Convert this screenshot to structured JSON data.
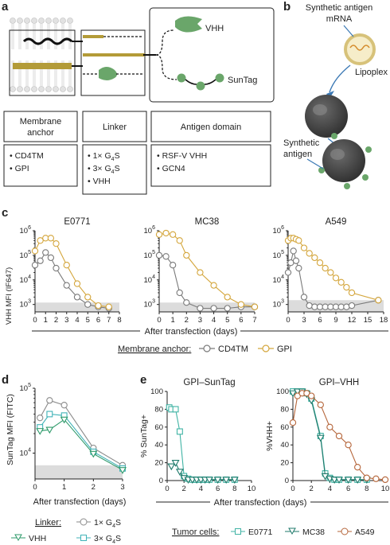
{
  "panels": {
    "a": "a",
    "b": "b",
    "c": "c",
    "d": "d",
    "e": "e"
  },
  "panel_a": {
    "vhh_label": "VHH",
    "suntag_label": "SunTag",
    "headers": [
      "Membrane anchor",
      "Linker",
      "Antigen domain"
    ],
    "anchor_items": [
      "CD4TM",
      "GPI"
    ],
    "linker_items": [
      "1× G4S",
      "3× G4S",
      "VHH"
    ],
    "antigen_items": [
      "RSF-V VHH",
      "GCN4"
    ]
  },
  "panel_b": {
    "mrna_label": "Synthetic antigen mRNA",
    "lipoplex_label": "Lipoplex",
    "antigen_label": "Synthetic antigen"
  },
  "panel_c": {
    "ylabel": "VHH MFI (IF647)",
    "xlabel": "After transfection (days)",
    "legend_title": "Membrane anchor:",
    "legend_items": [
      "CD4TM",
      "GPI"
    ]
  },
  "panel_d": {
    "ylabel": "SunTag MFI (FITC)",
    "xlabel": "After transfection (days)",
    "legend_title": "Linker:",
    "legend_items": [
      "1× G4S",
      "VHH",
      "3× G4S"
    ]
  },
  "panel_e": {
    "xlabel": "After transfection (days)",
    "legend_title": "Tumor cells:",
    "legend_items": [
      "E0771",
      "MC38",
      "A549"
    ]
  },
  "colors": {
    "cd4tm": "#7a7a7a",
    "gpi": "#d4a63c",
    "e0771": "#3fb3a4",
    "mc38": "#1f7a6b",
    "a549": "#b5653a",
    "g4s1": "#8a8a8a",
    "vhh_linker": "#2e9a6a",
    "g4s3": "#41b3b8",
    "shade": "#dcdcdc",
    "antigen_green": "#6aa66a",
    "gold": "#b39b38"
  },
  "chart_data": [
    {
      "type": "line",
      "title": "E0771",
      "xlabel": "After transfection (days)",
      "ylabel": "VHH MFI (IF647)",
      "yscale": "log",
      "xlim": [
        0,
        8
      ],
      "ylim": [
        500,
        1000000
      ],
      "shaded_below": 1200,
      "xticks": [
        0,
        1,
        2,
        3,
        4,
        5,
        6,
        7,
        8
      ],
      "series": [
        {
          "name": "CD4TM",
          "x": [
            0,
            0.5,
            1,
            1.5,
            2,
            3,
            4,
            5,
            6,
            7
          ],
          "y": [
            40000,
            60000,
            130000,
            80000,
            30000,
            6000,
            2000,
            1000,
            800,
            700
          ]
        },
        {
          "name": "GPI",
          "x": [
            0,
            0.5,
            1,
            1.5,
            2,
            3,
            4,
            5,
            6,
            7
          ],
          "y": [
            150000,
            400000,
            500000,
            500000,
            300000,
            40000,
            7000,
            2000,
            900,
            800
          ]
        }
      ]
    },
    {
      "type": "line",
      "title": "MC38",
      "xlabel": "After transfection (days)",
      "ylabel": "VHH MFI (IF647)",
      "yscale": "log",
      "xlim": [
        0,
        7
      ],
      "ylim": [
        500,
        1000000
      ],
      "shaded_below": 1200,
      "xticks": [
        0,
        1,
        2,
        3,
        4,
        5,
        6,
        7
      ],
      "series": [
        {
          "name": "CD4TM",
          "x": [
            0,
            0.5,
            1,
            1.5,
            2,
            3,
            4,
            5,
            6,
            7
          ],
          "y": [
            100000,
            90000,
            40000,
            3000,
            1200,
            700,
            700,
            700,
            800,
            800
          ]
        },
        {
          "name": "GPI",
          "x": [
            0,
            0.5,
            1,
            1.5,
            2,
            3,
            4,
            5,
            6,
            7
          ],
          "y": [
            700000,
            800000,
            700000,
            400000,
            100000,
            20000,
            6000,
            2000,
            1000,
            800
          ]
        }
      ]
    },
    {
      "type": "line",
      "title": "A549",
      "xlabel": "After transfection (days)",
      "ylabel": "VHH MFI (IF647)",
      "yscale": "log",
      "xlim": [
        0,
        18
      ],
      "ylim": [
        500,
        1000000
      ],
      "shaded_below": 1500,
      "xticks": [
        0,
        3,
        6,
        9,
        12,
        15,
        18
      ],
      "series": [
        {
          "name": "CD4TM",
          "x": [
            0,
            0.5,
            1,
            1.5,
            2,
            3,
            4,
            5,
            6,
            7,
            8,
            9,
            10,
            11,
            12,
            17
          ],
          "y": [
            20000,
            50000,
            150000,
            60000,
            30000,
            2000,
            900,
            800,
            800,
            800,
            800,
            800,
            800,
            800,
            900,
            1500
          ]
        },
        {
          "name": "GPI",
          "x": [
            0,
            0.5,
            1,
            1.5,
            2,
            3,
            4,
            5,
            6,
            7,
            8,
            9,
            10,
            11,
            12,
            17
          ],
          "y": [
            400000,
            500000,
            500000,
            450000,
            400000,
            200000,
            120000,
            80000,
            50000,
            30000,
            20000,
            12000,
            8000,
            5000,
            3000,
            1500
          ]
        }
      ]
    },
    {
      "type": "line",
      "title": "",
      "xlabel": "After transfection (days)",
      "ylabel": "SunTag MFI (FITC)",
      "yscale": "log",
      "xlim": [
        0,
        3
      ],
      "ylim": [
        4000,
        100000
      ],
      "shaded_below": 6500,
      "xticks": [
        0,
        1,
        2,
        3
      ],
      "series": [
        {
          "name": "1× G4S",
          "x": [
            0.17,
            0.5,
            1,
            2,
            3
          ],
          "y": [
            35000,
            65000,
            55000,
            12000,
            6500
          ]
        },
        {
          "name": "3× G4S",
          "x": [
            0.17,
            0.5,
            1,
            2,
            3
          ],
          "y": [
            25000,
            40000,
            38000,
            10500,
            5800
          ]
        },
        {
          "name": "VHH",
          "x": [
            0.17,
            0.5,
            1,
            2,
            3
          ],
          "y": [
            22000,
            23000,
            33000,
            9800,
            5500
          ]
        }
      ]
    },
    {
      "type": "line",
      "title": "GPI–SunTag",
      "xlabel": "After transfection (days)",
      "ylabel": "% SunTag+",
      "xlim": [
        0,
        10
      ],
      "ylim": [
        0,
        100
      ],
      "xticks": [
        0,
        2,
        4,
        6,
        8,
        10
      ],
      "yticks": [
        0,
        20,
        40,
        60,
        80,
        100
      ],
      "series": [
        {
          "name": "E0771",
          "x": [
            0.25,
            0.5,
            1,
            1.5,
            2,
            2.5,
            3,
            3.5,
            4,
            4.5,
            5,
            6,
            7,
            8
          ],
          "y": [
            82,
            80,
            80,
            55,
            5,
            2,
            1,
            1,
            1,
            1,
            1,
            1,
            1,
            1
          ]
        },
        {
          "name": "MC38",
          "x": [
            0.5,
            1,
            1.5,
            2,
            2.5,
            3,
            3.5,
            4,
            4.5,
            5,
            6,
            7,
            8
          ],
          "y": [
            16,
            20,
            10,
            3,
            1,
            1,
            1,
            1,
            1,
            1,
            1,
            1,
            1
          ]
        }
      ]
    },
    {
      "type": "line",
      "title": "GPI–VHH",
      "xlabel": "After transfection (days)",
      "ylabel": "%VHH+",
      "xlim": [
        0,
        10
      ],
      "ylim": [
        0,
        100
      ],
      "xticks": [
        0,
        2,
        4,
        6,
        8,
        10
      ],
      "yticks": [
        0,
        20,
        40,
        60,
        80,
        100
      ],
      "series": [
        {
          "name": "E0771",
          "x": [
            0,
            0.5,
            1,
            1.5,
            2,
            3,
            3.5,
            4,
            4.5,
            5,
            6,
            7,
            8
          ],
          "y": [
            100,
            100,
            100,
            98,
            92,
            50,
            8,
            3,
            1,
            1,
            1,
            1,
            1
          ]
        },
        {
          "name": "MC38",
          "x": [
            0,
            0.5,
            1,
            1.5,
            2,
            3,
            3.5,
            4,
            4.5,
            5,
            6,
            7,
            8
          ],
          "y": [
            98,
            100,
            100,
            97,
            90,
            48,
            5,
            2,
            1,
            1,
            1,
            1,
            1
          ]
        },
        {
          "name": "A549",
          "x": [
            0,
            0.5,
            1,
            1.5,
            2,
            3,
            4,
            5,
            6,
            7,
            8,
            9,
            10
          ],
          "y": [
            65,
            95,
            98,
            98,
            95,
            85,
            60,
            50,
            40,
            15,
            3,
            2,
            1
          ]
        }
      ]
    }
  ]
}
